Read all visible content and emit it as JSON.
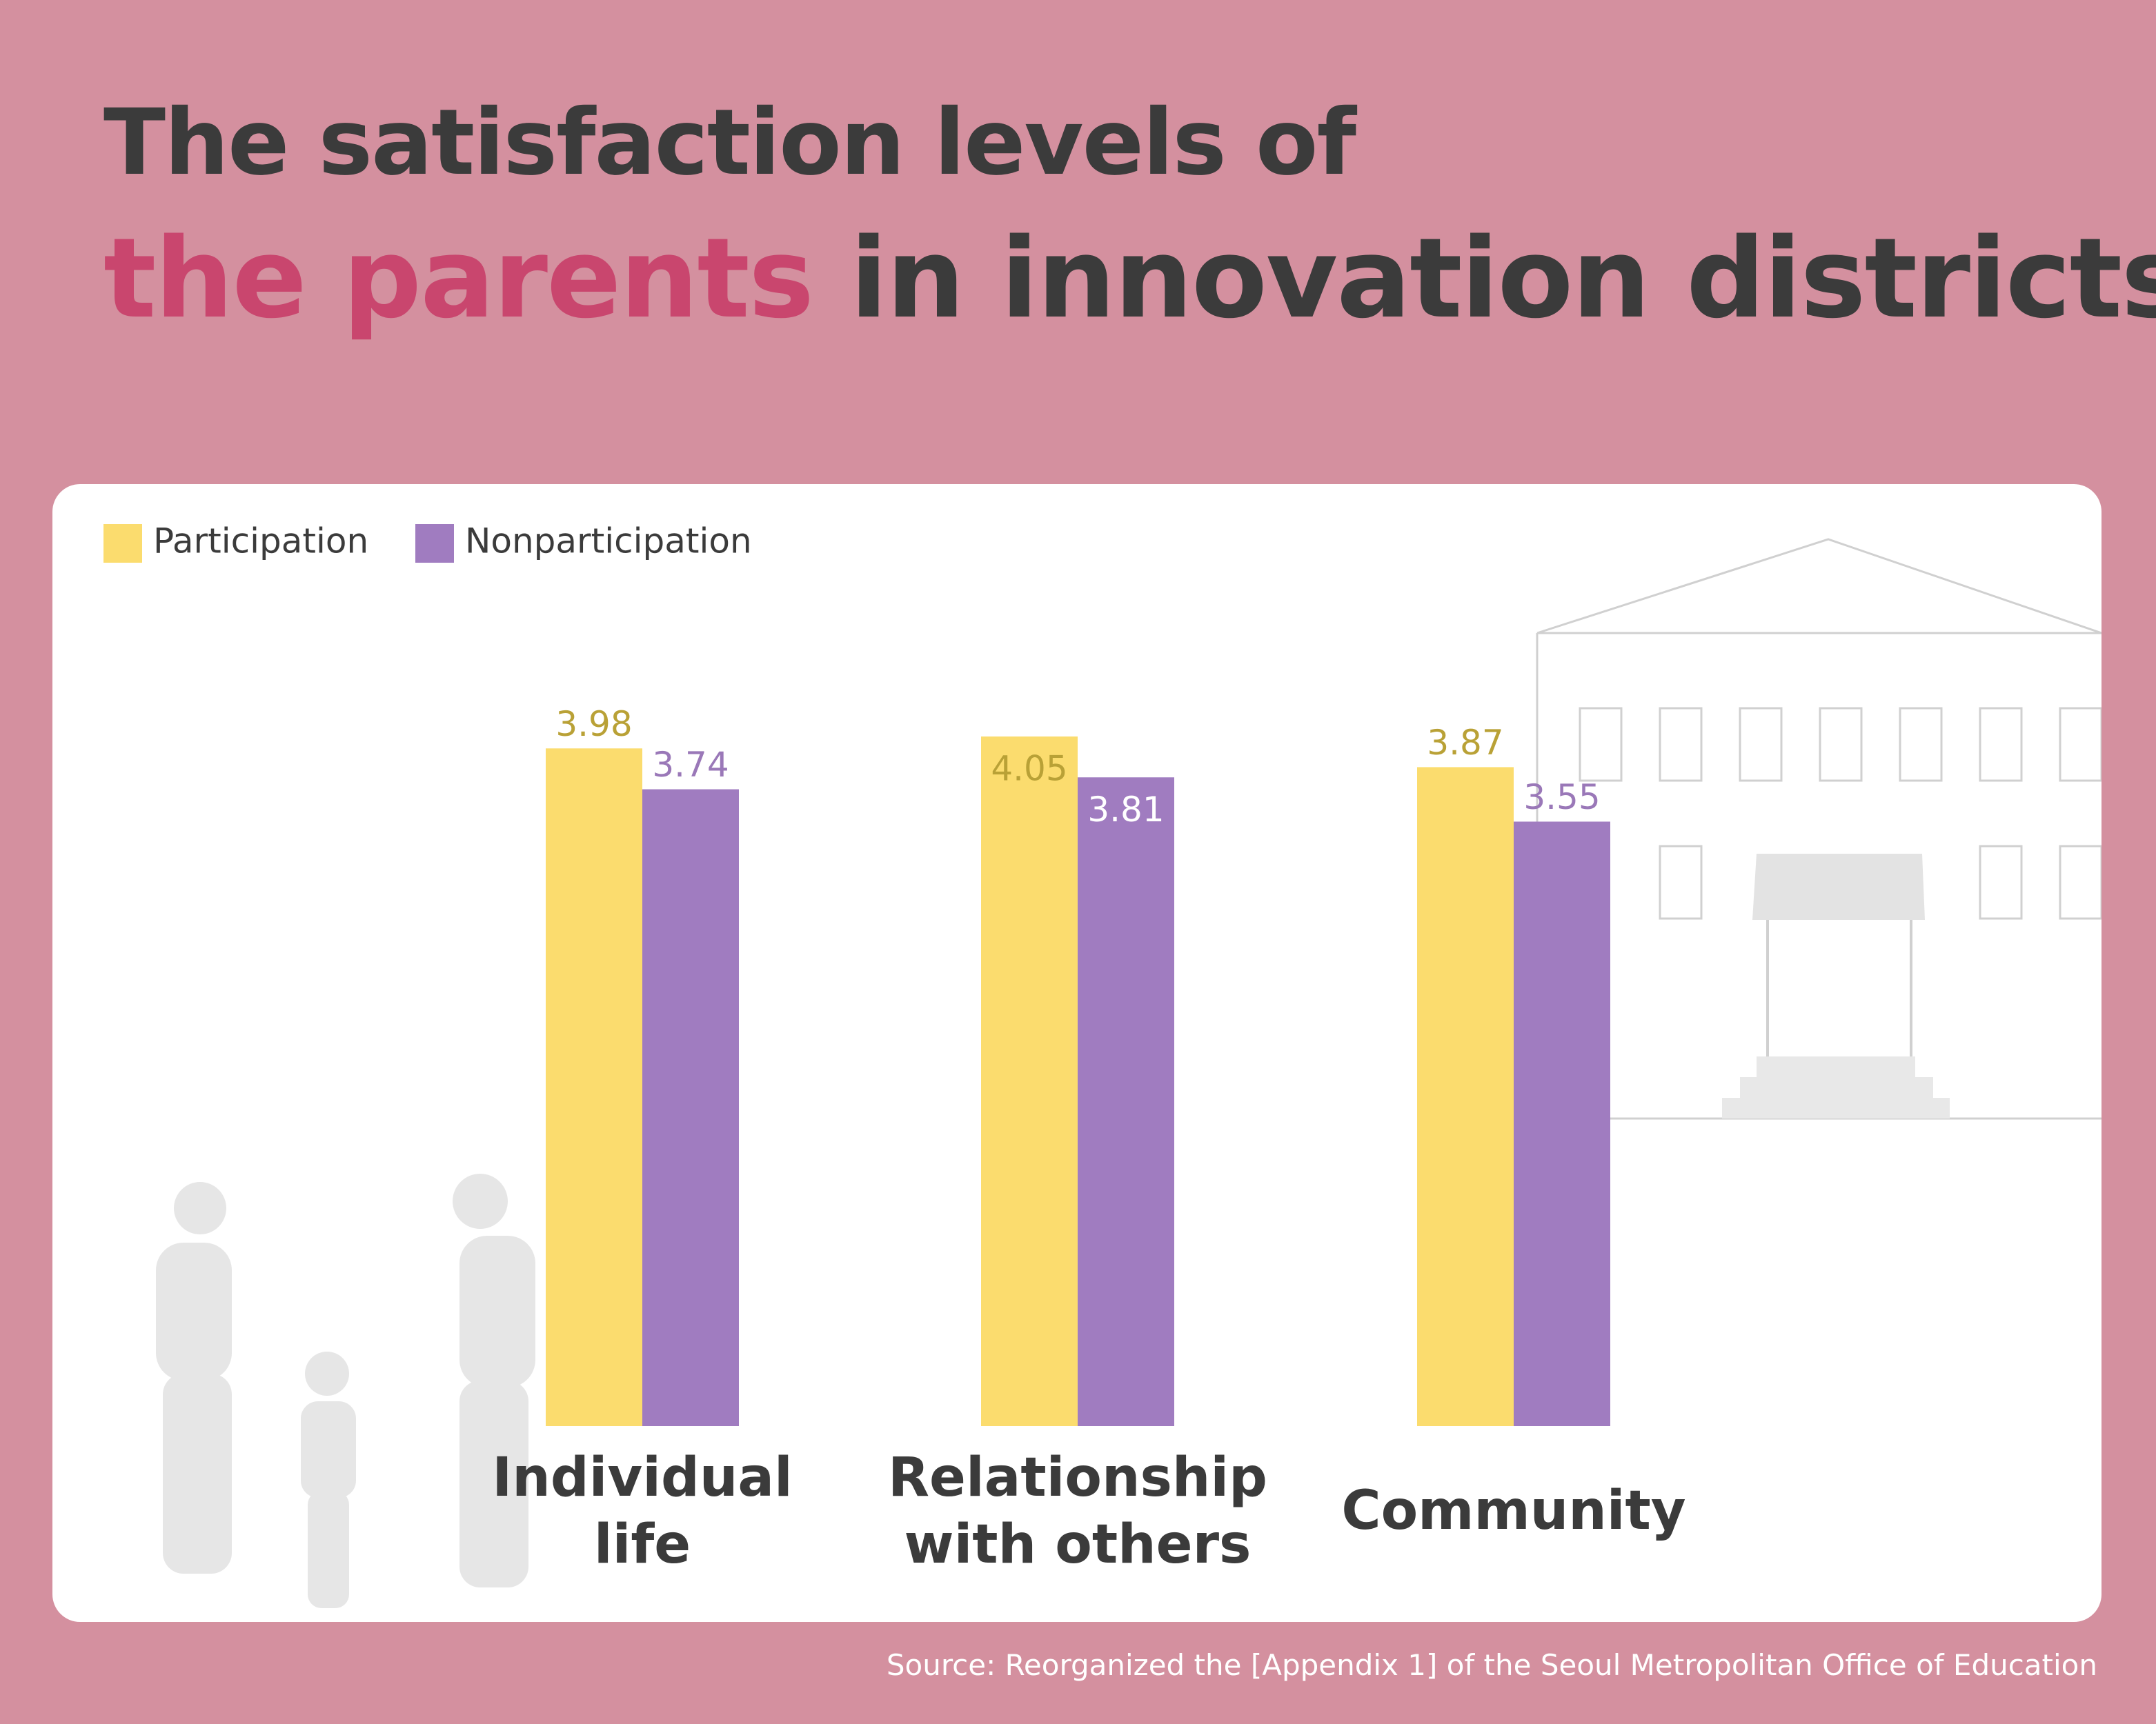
{
  "chart_data": {
    "type": "bar",
    "title_line1": "The satisfaction levels of",
    "title_highlight": "the parents",
    "title_rest": "in innovation districts",
    "categories": [
      "Individual life",
      "Relationship with others",
      "Community"
    ],
    "series": [
      {
        "name": "Participation",
        "color": "#fbdc6e",
        "label_color": "#b9a136",
        "values": [
          3.98,
          4.05,
          3.87
        ]
      },
      {
        "name": "Nonparticipation",
        "color": "#a07cc0",
        "label_color": "#9a78b8",
        "values": [
          3.74,
          3.81,
          3.55
        ]
      }
    ],
    "legend": "top-left",
    "source": "Source: Reorganized the [Appendix 1] of the Seoul Metropolitan Office of Education"
  }
}
